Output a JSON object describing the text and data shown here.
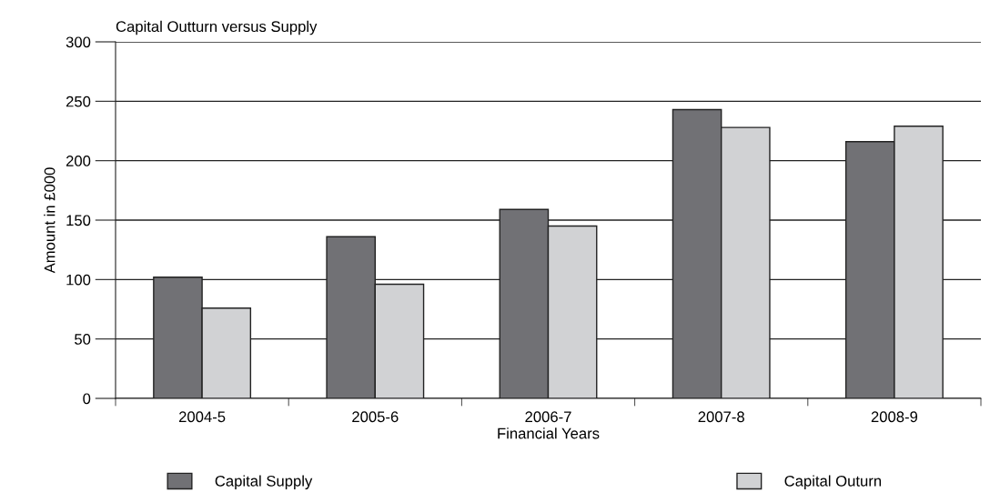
{
  "chart_data": {
    "type": "bar",
    "title": "Capital Outturn versus Supply",
    "xlabel": "Financial Years",
    "ylabel": "Amount in £000",
    "categories": [
      "2004-5",
      "2005-6",
      "2006-7",
      "2007-8",
      "2008-9"
    ],
    "series": [
      {
        "name": "Capital Supply",
        "color": "#717175",
        "values": [
          102,
          136,
          159,
          243,
          216
        ]
      },
      {
        "name": "Capital Outurn",
        "color": "#d1d2d4",
        "values": [
          76,
          96,
          145,
          228,
          229
        ]
      }
    ],
    "ylim": [
      0,
      300
    ],
    "yticks": [
      0,
      50,
      100,
      150,
      200,
      250,
      300
    ],
    "grid": "y",
    "legend": "bottom"
  }
}
